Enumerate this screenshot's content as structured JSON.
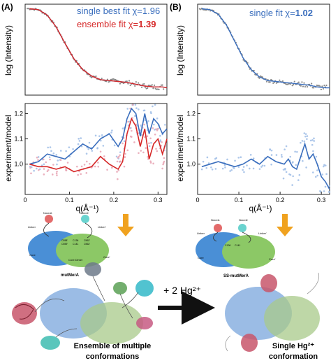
{
  "panel_labels": {
    "a": "(A)",
    "b": "(B)"
  },
  "colors": {
    "blue": "#3a6ebd",
    "red": "#d62828",
    "data_gray": "#8a8a8a",
    "points_blue": "#9fbde6",
    "points_pink": "#e8a3b3",
    "arrow_orange": "#f0a21f"
  },
  "panel_a": {
    "top": {
      "ylabel": "log (Intensity)",
      "legend": [
        {
          "text": "single best fit χ=",
          "value": "1.96",
          "color": "#3a6ebd"
        },
        {
          "text": "ensemble fit χ=",
          "value": "1.39",
          "color": "#d62828"
        }
      ]
    },
    "bottom": {
      "ylabel": "experiment/model",
      "xlabel": "q(Å⁻¹)"
    }
  },
  "panel_b": {
    "top": {
      "ylabel": "log (Intensity)",
      "legend": [
        {
          "text": "single fit χ=",
          "value": "1.02",
          "color": "#3a6ebd"
        }
      ]
    },
    "bottom": {
      "ylabel": "experiment/model",
      "xlabel": "q(Å⁻¹)"
    }
  },
  "schematic_a": {
    "title": "mutMerA",
    "labels": [
      "NmerA",
      "NmerA'",
      "Linker",
      "Linker'",
      "Core",
      "Core'",
      "Core Dimer",
      "C558'",
      "C559'",
      "C136",
      "C141",
      "C562'",
      "C562'"
    ]
  },
  "schematic_b": {
    "title": "SS-mutMerA",
    "labels": [
      "NmerA",
      "NmerA'",
      "Linker",
      "Linker'",
      "Core",
      "Core'",
      "C136",
      "C141"
    ]
  },
  "middle_arrow_text": "+ 2 Hg²⁺",
  "caption_a": [
    "Ensemble of multiple",
    "conformations"
  ],
  "caption_b": [
    "Single Hg²⁺",
    "conformation"
  ],
  "chart_data": [
    {
      "type": "line",
      "panel": "A top",
      "ylabel": "log (Intensity)",
      "xlim": [
        0,
        0.32
      ],
      "series": [
        {
          "name": "single best fit",
          "x": [
            0.01,
            0.03,
            0.05,
            0.07,
            0.09,
            0.11,
            0.13,
            0.15,
            0.17,
            0.19,
            0.21,
            0.23,
            0.25,
            0.27,
            0.29,
            0.31,
            0.32
          ],
          "y": [
            1.0,
            0.99,
            0.93,
            0.8,
            0.62,
            0.45,
            0.33,
            0.26,
            0.22,
            0.21,
            0.2,
            0.19,
            0.17,
            0.15,
            0.14,
            0.14,
            0.13
          ]
        },
        {
          "name": "ensemble fit",
          "x": [
            0.01,
            0.03,
            0.05,
            0.07,
            0.09,
            0.11,
            0.13,
            0.15,
            0.17,
            0.19,
            0.21,
            0.23,
            0.25,
            0.27,
            0.29,
            0.31,
            0.32
          ],
          "y": [
            1.0,
            0.99,
            0.93,
            0.8,
            0.62,
            0.45,
            0.33,
            0.26,
            0.22,
            0.21,
            0.2,
            0.19,
            0.17,
            0.15,
            0.14,
            0.14,
            0.13
          ]
        }
      ]
    },
    {
      "type": "line",
      "panel": "A bottom",
      "xlabel": "q(Å⁻¹)",
      "ylabel": "experiment/model",
      "xlim": [
        0,
        0.32
      ],
      "ylim": [
        0.88,
        1.24
      ],
      "xticks": [
        "0",
        "0.1",
        "0.2",
        "0.3"
      ],
      "yticks": [
        "1.0",
        "1.1",
        "1.2"
      ],
      "series": [
        {
          "name": "single best fit",
          "x": [
            0.01,
            0.03,
            0.05,
            0.07,
            0.09,
            0.11,
            0.13,
            0.15,
            0.17,
            0.19,
            0.21,
            0.22,
            0.23,
            0.24,
            0.25,
            0.26,
            0.27,
            0.28,
            0.29,
            0.3,
            0.31,
            0.32
          ],
          "y": [
            1.0,
            1.01,
            1.04,
            1.03,
            1.02,
            1.05,
            1.08,
            1.06,
            1.1,
            1.12,
            1.07,
            1.1,
            1.18,
            1.22,
            1.2,
            1.11,
            1.2,
            1.12,
            1.18,
            1.16,
            1.12,
            1.14
          ]
        },
        {
          "name": "ensemble fit",
          "x": [
            0.01,
            0.03,
            0.05,
            0.07,
            0.09,
            0.11,
            0.13,
            0.15,
            0.17,
            0.19,
            0.21,
            0.22,
            0.23,
            0.24,
            0.25,
            0.26,
            0.27,
            0.28,
            0.29,
            0.3,
            0.31,
            0.32
          ],
          "y": [
            1.0,
            0.99,
            0.99,
            0.98,
            0.99,
            0.97,
            0.98,
            0.99,
            1.03,
            1.0,
            0.98,
            1.01,
            1.12,
            1.18,
            1.15,
            1.07,
            1.14,
            1.02,
            1.08,
            1.1,
            1.04,
            1.1
          ]
        }
      ]
    },
    {
      "type": "line",
      "panel": "B top",
      "ylabel": "log (Intensity)",
      "xlim": [
        0,
        0.32
      ],
      "series": [
        {
          "name": "single fit",
          "x": [
            0.01,
            0.03,
            0.05,
            0.07,
            0.09,
            0.11,
            0.13,
            0.15,
            0.17,
            0.19,
            0.21,
            0.23,
            0.25,
            0.27,
            0.29,
            0.31,
            0.32
          ],
          "y": [
            1.0,
            0.99,
            0.94,
            0.82,
            0.64,
            0.46,
            0.33,
            0.25,
            0.21,
            0.2,
            0.19,
            0.18,
            0.17,
            0.16,
            0.14,
            0.13,
            0.13
          ]
        }
      ]
    },
    {
      "type": "line",
      "panel": "B bottom",
      "xlabel": "q(Å⁻¹)",
      "ylabel": "experiment/model",
      "xlim": [
        0,
        0.32
      ],
      "ylim": [
        0.88,
        1.24
      ],
      "xticks": [
        "0",
        "0.1",
        "0.2",
        "0.3"
      ],
      "yticks": [
        "1.0",
        "1.1",
        "1.2"
      ],
      "series": [
        {
          "name": "single fit",
          "x": [
            0.01,
            0.03,
            0.05,
            0.07,
            0.09,
            0.11,
            0.13,
            0.15,
            0.17,
            0.19,
            0.21,
            0.22,
            0.23,
            0.24,
            0.25,
            0.26,
            0.27,
            0.28,
            0.29,
            0.3,
            0.31,
            0.32
          ],
          "y": [
            0.99,
            1.0,
            1.01,
            1.0,
            0.99,
            1.0,
            1.02,
            1.0,
            1.03,
            1.01,
            1.0,
            1.02,
            0.99,
            0.98,
            1.03,
            1.08,
            1.02,
            1.04,
            1.0,
            0.95,
            0.93,
            0.9
          ]
        }
      ]
    }
  ]
}
